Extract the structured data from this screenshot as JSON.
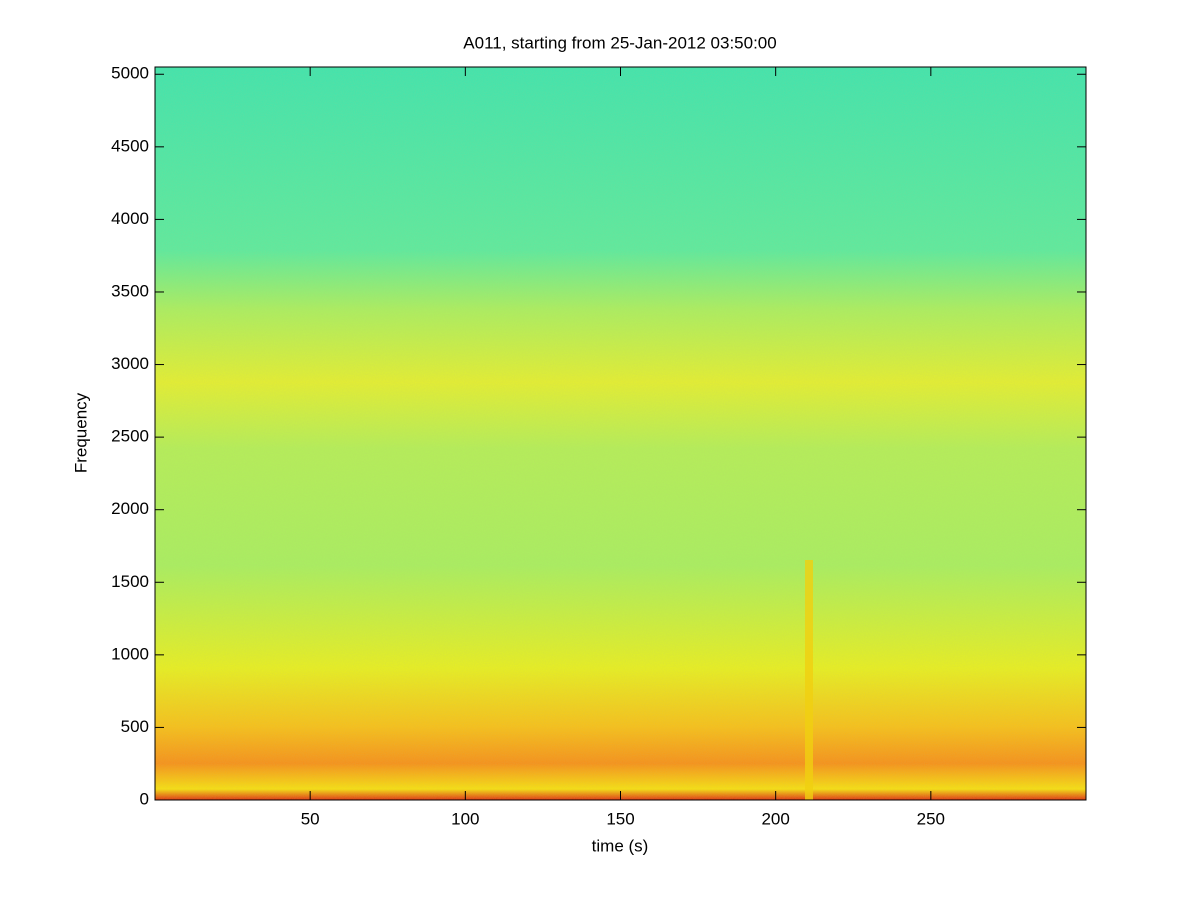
{
  "chart_data": {
    "type": "spectrogram",
    "title": "A011, starting from 25-Jan-2012 03:50:00",
    "x_label": "time (s)",
    "y_label": "Frequency",
    "xlim": [
      0,
      300
    ],
    "xticks": [
      50,
      100,
      150,
      200,
      250
    ],
    "ylim": [
      0,
      5050
    ],
    "yticks": [
      0,
      500,
      1000,
      1500,
      2000,
      2500,
      3000,
      3500,
      4000,
      4500,
      5000
    ]
  }
}
